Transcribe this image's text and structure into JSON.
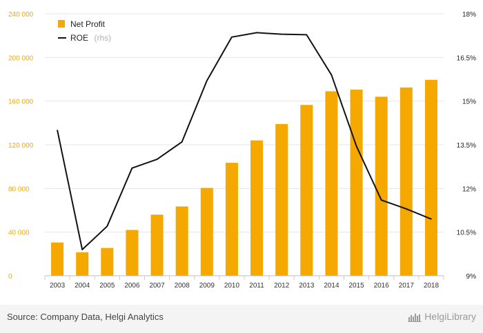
{
  "chart_data": {
    "type": "bar+line",
    "categories": [
      "2003",
      "2004",
      "2005",
      "2006",
      "2007",
      "2008",
      "2009",
      "2010",
      "2011",
      "2012",
      "2013",
      "2014",
      "2015",
      "2016",
      "2017",
      "2018"
    ],
    "series": [
      {
        "name": "Net Profit",
        "type": "bar",
        "axis": "left",
        "color": "#f5a800",
        "values": [
          30500,
          21500,
          25500,
          42000,
          56000,
          63500,
          80500,
          103500,
          124000,
          139000,
          156500,
          169000,
          170500,
          164000,
          172500,
          179500
        ]
      },
      {
        "name": "ROE",
        "name_suffix": "(rhs)",
        "type": "line",
        "axis": "right",
        "color": "#111111",
        "values": [
          14.0,
          9.9,
          10.7,
          12.7,
          13.0,
          13.6,
          15.7,
          17.2,
          17.35,
          17.3,
          17.28,
          15.9,
          13.45,
          11.6,
          11.3,
          10.95
        ]
      }
    ],
    "y_left": {
      "min": 0,
      "max": 240000,
      "ticks": [
        0,
        40000,
        80000,
        120000,
        160000,
        200000,
        240000
      ],
      "tick_labels": [
        "0",
        "40 000",
        "80 000",
        "120 000",
        "160 000",
        "200 000",
        "240 000"
      ]
    },
    "y_right": {
      "min": 9,
      "max": 18,
      "ticks": [
        9,
        10.5,
        12,
        13.5,
        15,
        16.5,
        18
      ],
      "tick_labels": [
        "9%",
        "10.5%",
        "12%",
        "13.5%",
        "15%",
        "16.5%",
        "18%"
      ]
    },
    "grid": true,
    "legend_position": "top-left"
  },
  "footer": {
    "source": "Source: Company Data, Helgi Analytics",
    "brand": "HelgiLibrary",
    "brand_icon": "library-icon"
  }
}
